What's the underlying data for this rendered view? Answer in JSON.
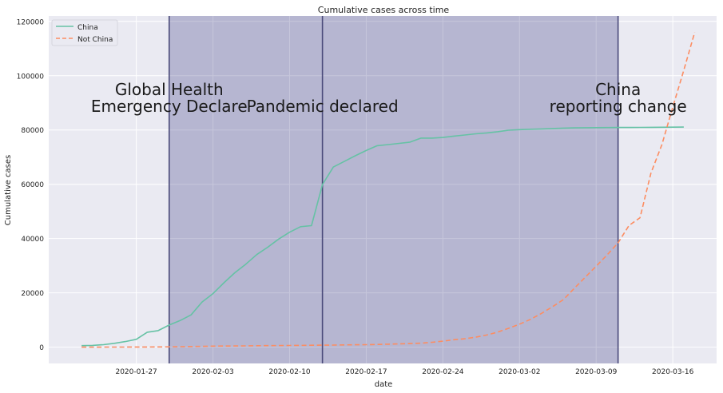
{
  "chart_data": {
    "type": "line",
    "title": "Cumulative cases across time",
    "xlabel": "date",
    "ylabel": "Cumulative cases",
    "x_start": "2020-01-22",
    "x_range": [
      "2020-01-19",
      "2020-03-20"
    ],
    "ylim": [
      -6000,
      122000
    ],
    "yticks": [
      0,
      20000,
      40000,
      60000,
      80000,
      100000,
      120000
    ],
    "xticks": [
      "2020-01-27",
      "2020-02-03",
      "2020-02-10",
      "2020-02-17",
      "2020-02-24",
      "2020-03-02",
      "2020-03-09",
      "2020-03-16"
    ],
    "grid": true,
    "legend": "top-left",
    "series": [
      {
        "name": "China",
        "color": "#66c2a5",
        "style": "solid",
        "values": [
          548,
          643,
          920,
          1406,
          2075,
          2877,
          5509,
          6087,
          8141,
          9802,
          11891,
          16630,
          19716,
          23707,
          27440,
          30587,
          34110,
          36814,
          39829,
          42354,
          44386,
          44759,
          59895,
          66358,
          68413,
          70513,
          72434,
          74211,
          74619,
          75077,
          75550,
          77001,
          77022,
          77241,
          77754,
          78166,
          78600,
          78928,
          79356,
          79932,
          80136,
          80261,
          80386,
          80537,
          80690,
          80770,
          80823,
          80860,
          80887,
          80921,
          80932,
          80945,
          80977,
          81003,
          81033,
          81058
        ]
      },
      {
        "name": "Not China",
        "color": "#fc8d62",
        "style": "dashed",
        "values": [
          7,
          11,
          21,
          28,
          43,
          50,
          70,
          95,
          127,
          166,
          238,
          294,
          389,
          420,
          444,
          485,
          523,
          554,
          603,
          622,
          660,
          719,
          736,
          780,
          840,
          871,
          911,
          1003,
          1082,
          1215,
          1326,
          1479,
          1792,
          2208,
          2731,
          3107,
          3678,
          4473,
          5532,
          6934,
          8487,
          10252,
          12408,
          14875,
          17489,
          21641,
          25760,
          29799,
          33976,
          38463,
          44853,
          47679,
          64134,
          74596,
          88486,
          102000,
          116000
        ]
      }
    ],
    "spans": [
      {
        "start": "2020-01-30",
        "end": "2020-03-11",
        "color": "#2c2c7a"
      }
    ],
    "vlines": [
      {
        "x": "2020-01-30",
        "label": "Global Health\nEmergency Declare"
      },
      {
        "x": "2020-02-13",
        "label": "Pandemic declared"
      },
      {
        "x": "2020-03-11",
        "label": "China\nreporting change"
      }
    ]
  }
}
